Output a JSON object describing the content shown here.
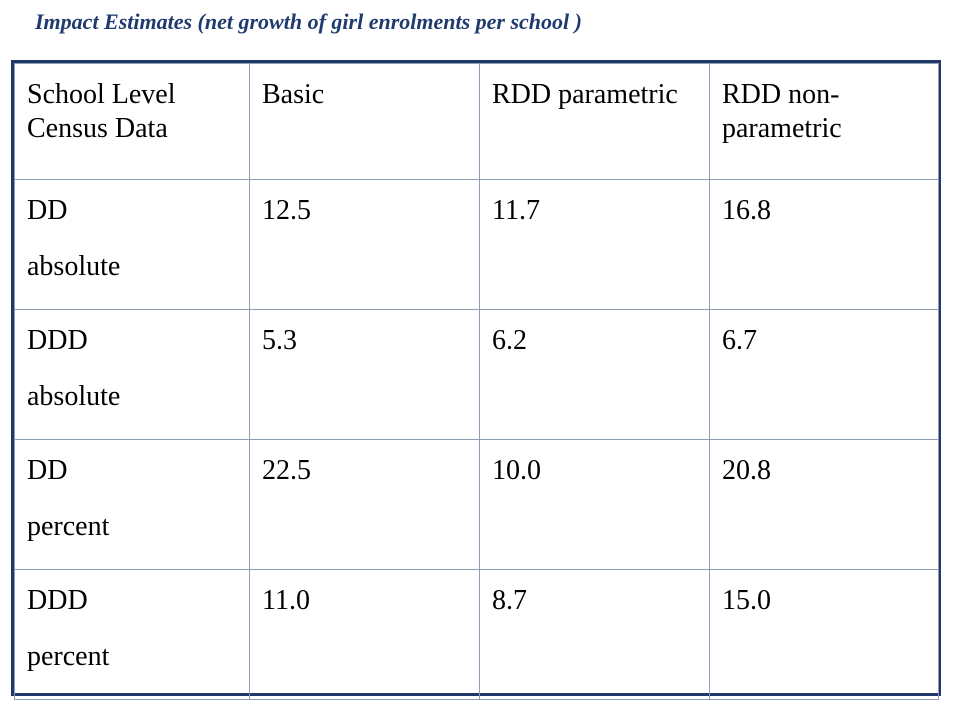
{
  "title": "Impact Estimates (net growth of girl enrolments per school )",
  "table": {
    "headers": [
      "School Level Census Data",
      "Basic",
      "RDD parametric",
      "RDD non-parametric"
    ],
    "rows": [
      {
        "label_line1": "DD",
        "label_line2": "absolute",
        "values": [
          "12.5",
          "11.7",
          "16.8"
        ]
      },
      {
        "label_line1": "DDD",
        "label_line2": "absolute",
        "values": [
          "5.3",
          "6.2",
          "6.7"
        ]
      },
      {
        "label_line1": "DD",
        "label_line2": "percent",
        "values": [
          "22.5",
          "10.0",
          "20.8"
        ]
      },
      {
        "label_line1": "DDD",
        "label_line2": "percent",
        "values": [
          "11.0",
          "8.7",
          "15.0"
        ]
      }
    ]
  },
  "colors": {
    "title": "#1f3a6e",
    "frame_border": "#21386b",
    "cell_border": "#8f9cb8"
  }
}
